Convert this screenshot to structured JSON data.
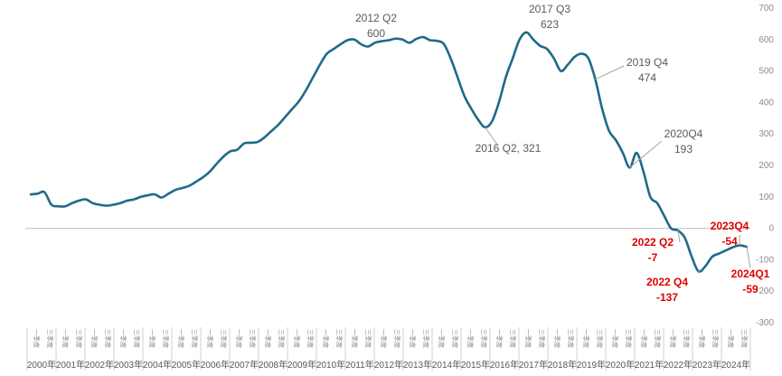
{
  "chart_data": {
    "type": "line",
    "title": "",
    "xlabel": "",
    "ylabel": "",
    "ylim": [
      -300,
      700
    ],
    "yticks": [
      -300,
      -200,
      -100,
      0,
      100,
      200,
      300,
      400,
      500,
      600,
      700
    ],
    "years": [
      "2000年",
      "2001年",
      "2002年",
      "2003年",
      "2004年",
      "2005年",
      "2006年",
      "2007年",
      "2008年",
      "2009年",
      "2010年",
      "2011年",
      "2012年",
      "2013年",
      "2014年",
      "2015年",
      "2016年",
      "2017年",
      "2018年",
      "2019年",
      "2020年",
      "2021年",
      "2022年",
      "2023年",
      "2024年"
    ],
    "quarter_labels": [
      "一季度",
      "三季度"
    ],
    "grid": false,
    "legend": "none",
    "line_color": "#1f6a8a",
    "series": [
      {
        "values": [
          108,
          110,
          115,
          75,
          70,
          70,
          80,
          88,
          92,
          80,
          75,
          72,
          75,
          80,
          88,
          92,
          100,
          105,
          108,
          98,
          110,
          122,
          128,
          135,
          148,
          162,
          180,
          205,
          228,
          245,
          250,
          270,
          272,
          275,
          290,
          310,
          330,
          355,
          380,
          405,
          440,
          480,
          520,
          555,
          570,
          585,
          598,
          600,
          585,
          578,
          590,
          595,
          598,
          603,
          600,
          590,
          602,
          608,
          598,
          596,
          586,
          540,
          480,
          420,
          380,
          345,
          321,
          340,
          400,
          480,
          540,
          600,
          623,
          600,
          580,
          570,
          540,
          500,
          520,
          545,
          555,
          540,
          474,
          380,
          310,
          280,
          240,
          193,
          240,
          180,
          100,
          80,
          40,
          0,
          -7,
          -30,
          -90,
          -137,
          -120,
          -90,
          -80,
          -70,
          -60,
          -54,
          -59
        ]
      }
    ],
    "annotations": [
      {
        "lines": [
          "2012 Q2",
          "600"
        ],
        "color": "gray"
      },
      {
        "lines": [
          "2017 Q3",
          "623"
        ],
        "color": "gray"
      },
      {
        "lines": [
          "2016 Q2, 321"
        ],
        "color": "gray"
      },
      {
        "lines": [
          "2019 Q4",
          "474"
        ],
        "color": "gray"
      },
      {
        "lines": [
          "2020Q4",
          "193"
        ],
        "color": "gray"
      },
      {
        "lines": [
          "2022 Q2",
          "-7"
        ],
        "color": "red"
      },
      {
        "lines": [
          "2022 Q4",
          "-137"
        ],
        "color": "red"
      },
      {
        "lines": [
          "2023Q4",
          "-54"
        ],
        "color": "red"
      },
      {
        "lines": [
          "2024Q1",
          "-59"
        ],
        "color": "red"
      }
    ]
  }
}
